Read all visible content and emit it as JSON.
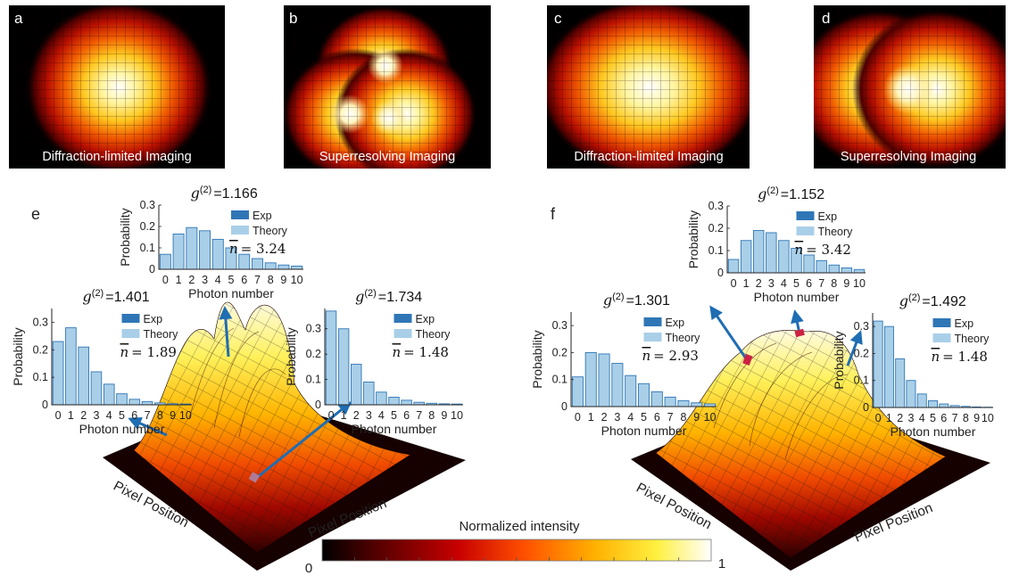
{
  "panels": {
    "a": {
      "letter": "a",
      "caption": "Diffraction-limited Imaging"
    },
    "b": {
      "letter": "b",
      "caption": "Superresolving Imaging"
    },
    "c": {
      "letter": "c",
      "caption": "Diffraction-limited Imaging"
    },
    "d": {
      "letter": "d",
      "caption": "Superresolving Imaging"
    }
  },
  "panel_e_label": "e",
  "panel_f_label": "f",
  "surface_axes": {
    "e": {
      "left": "Pixel Position",
      "right": "Pixel Position"
    },
    "f": {
      "left": "Pixel Position",
      "right": "Pixel Position"
    }
  },
  "colorbar": {
    "title": "Normalized intensity",
    "min_label": "0",
    "max_label": "1",
    "colors": [
      "#000000",
      "#5a0000",
      "#c80000",
      "#ff5000",
      "#ffb000",
      "#fff040",
      "#ffffff"
    ]
  },
  "histogram_common": {
    "ylabel": "Probability",
    "xlabel": "Photon number",
    "legend_exp": "Exp",
    "legend_theory": "Theory",
    "exp_color": "#2f76b6",
    "theory_color": "#a9cfe8",
    "categories": [
      "0",
      "1",
      "2",
      "3",
      "4",
      "5",
      "6",
      "7",
      "8",
      "9",
      "10"
    ]
  },
  "chart_data": [
    {
      "type": "bar",
      "id": "e-top",
      "title": "=1.166",
      "nbar": "= 3.24",
      "ylim": [
        0,
        0.3
      ],
      "yticks": [
        "0",
        "0.1",
        "0.2",
        "0.3"
      ],
      "values": [
        0.07,
        0.165,
        0.195,
        0.18,
        0.14,
        0.1,
        0.07,
        0.05,
        0.03,
        0.02,
        0.015
      ]
    },
    {
      "type": "bar",
      "id": "e-left",
      "title": "=1.401",
      "nbar": "= 1.89",
      "ylim": [
        0,
        0.35
      ],
      "yticks": [
        "0",
        "0.1",
        "0.2",
        "0.3"
      ],
      "values": [
        0.23,
        0.28,
        0.21,
        0.12,
        0.075,
        0.04,
        0.02,
        0.012,
        0.007,
        0.004,
        0.003
      ]
    },
    {
      "type": "bar",
      "id": "e-right",
      "title": "=1.734",
      "nbar": "= 1.48",
      "ylim": [
        0,
        0.38
      ],
      "yticks": [
        "0",
        "0.1",
        "0.2",
        "0.3"
      ],
      "values": [
        0.37,
        0.3,
        0.16,
        0.09,
        0.05,
        0.03,
        0.018,
        0.01,
        0.006,
        0.004,
        0.003
      ]
    },
    {
      "type": "bar",
      "id": "f-top",
      "title": "=1.152",
      "nbar": "= 3.42",
      "ylim": [
        0,
        0.3
      ],
      "yticks": [
        "0",
        "0.1",
        "0.2",
        "0.3"
      ],
      "values": [
        0.06,
        0.145,
        0.19,
        0.18,
        0.145,
        0.11,
        0.08,
        0.055,
        0.035,
        0.022,
        0.015
      ]
    },
    {
      "type": "bar",
      "id": "f-left",
      "title": "=1.301",
      "nbar": "= 2.93",
      "ylim": [
        0,
        0.35
      ],
      "yticks": [
        "0",
        "0.1",
        "0.2",
        "0.3"
      ],
      "values": [
        0.11,
        0.2,
        0.195,
        0.16,
        0.115,
        0.085,
        0.055,
        0.035,
        0.022,
        0.014,
        0.01
      ]
    },
    {
      "type": "bar",
      "id": "f-right",
      "title": "=1.492",
      "nbar": "= 1.48",
      "ylim": [
        0,
        0.35
      ],
      "yticks": [
        "0",
        "0.1",
        "0.2",
        "0.3"
      ],
      "values": [
        0.32,
        0.3,
        0.18,
        0.1,
        0.05,
        0.025,
        0.013,
        0.007,
        0.004,
        0.002,
        0.001
      ]
    }
  ]
}
